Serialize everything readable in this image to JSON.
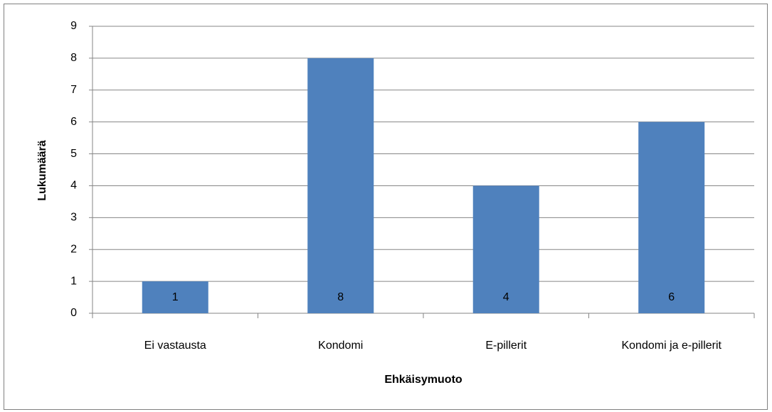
{
  "chart_data": {
    "type": "bar",
    "categories": [
      "Ei vastausta",
      "Kondomi",
      "E-pillerit",
      "Kondomi ja e-pillerit"
    ],
    "values": [
      1,
      8,
      4,
      6
    ],
    "color": "#4f81bd",
    "ylim": [
      0,
      9
    ],
    "yticks": [
      0,
      1,
      2,
      3,
      4,
      5,
      6,
      7,
      8,
      9
    ],
    "grid": true,
    "x_label": "Ehkäisymuoto",
    "y_label": "Lukumäärä"
  }
}
